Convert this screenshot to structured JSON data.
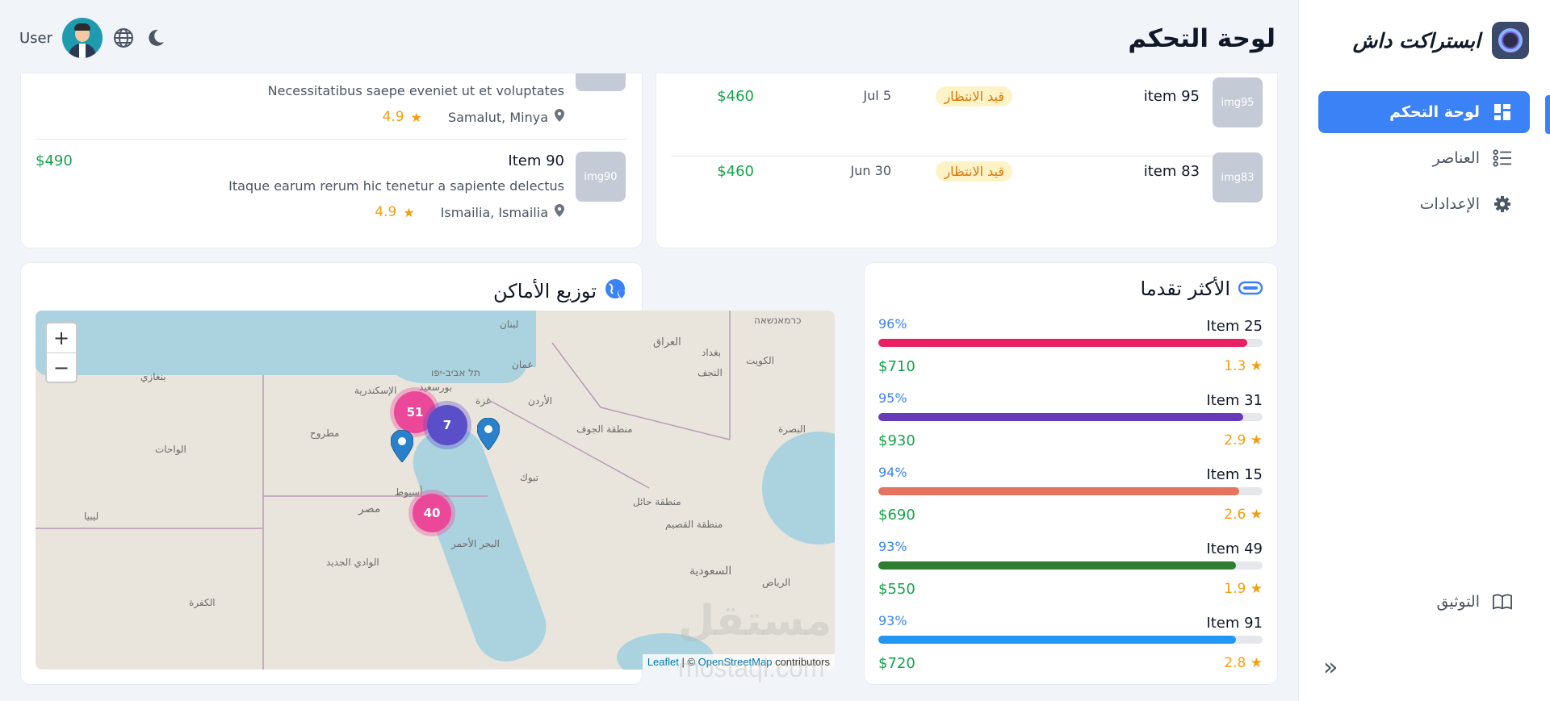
{
  "app": {
    "brand_name": "ابستراكت داش",
    "page_title": "لوحة التحكم"
  },
  "header": {
    "user_label": "User",
    "icons": [
      "globe-icon",
      "moon-icon"
    ]
  },
  "sidebar": {
    "items": [
      {
        "label": "لوحة التحكم",
        "icon": "dashboard-icon",
        "active": true
      },
      {
        "label": "العناصر",
        "icon": "list-icon",
        "active": false
      },
      {
        "label": "الإعدادات",
        "icon": "gear-icon",
        "active": false
      }
    ],
    "docs_label": "التوثيق",
    "collapse_icon": "chevrons-right-icon"
  },
  "reviews": {
    "partial": {
      "desc": "Necessitatibus saepe eveniet ut et voluptates",
      "location": "Samalut, Minya",
      "rating": "4.9"
    },
    "items": [
      {
        "thumb": "img90",
        "title": "Item 90",
        "desc": "Itaque earum rerum hic tenetur a sapiente delectus",
        "location": "Ismailia, Ismailia",
        "rating": "4.9",
        "price": "$490"
      }
    ]
  },
  "orders": {
    "items": [
      {
        "thumb": "img95",
        "name": "item 95",
        "status": "قيد الانتظار",
        "date": "Jul 5",
        "price": "$460"
      },
      {
        "thumb": "img83",
        "name": "item 83",
        "status": "قيد الانتظار",
        "date": "Jun 30",
        "price": "$460"
      }
    ]
  },
  "map_section": {
    "title": "توزيع الأماكن",
    "zoom_in": "+",
    "zoom_out": "−",
    "clusters": [
      "51",
      "7",
      "40"
    ],
    "attribution": {
      "leaflet": "Leaflet",
      "sep": " | © ",
      "osm": "OpenStreetMap",
      "suffix": " contributors"
    },
    "labels": [
      "بغداد",
      "العراق",
      "الكويت",
      "البصرة",
      "الرياض",
      "السعودية",
      "تبوك",
      "الأردن",
      "مصر",
      "أسيوط",
      "ليبيا",
      "بنغازي",
      "الإسكندرية",
      "بورسعيد",
      "الواحات",
      "مطروح",
      "منطقة الجوف",
      "منطقة حائل",
      "منطقة القصيم",
      "الوادي الجديد",
      "الكفرة",
      "البحر الأحمر",
      "عمان",
      "غزة",
      "النجف",
      "لبنان",
      "כרמאנשאה",
      "תל אביב-יפו"
    ]
  },
  "progress_section": {
    "title": "الأكثر تقدما",
    "items": [
      {
        "name": "Item 25",
        "percent": 96,
        "percent_label": "96%",
        "price": "$710",
        "rating": "1.3",
        "color": "#e91e63"
      },
      {
        "name": "Item 31",
        "percent": 95,
        "percent_label": "95%",
        "price": "$930",
        "rating": "2.9",
        "color": "#673ab7"
      },
      {
        "name": "Item 15",
        "percent": 94,
        "percent_label": "94%",
        "price": "$690",
        "rating": "2.6",
        "color": "#e57360"
      },
      {
        "name": "Item 49",
        "percent": 93,
        "percent_label": "93%",
        "price": "$550",
        "rating": "1.9",
        "color": "#2e7d32"
      },
      {
        "name": "Item 91",
        "percent": 93,
        "percent_label": "93%",
        "price": "$720",
        "rating": "2.8",
        "color": "#2196f3"
      }
    ]
  },
  "watermark": {
    "arabic": "مستقل",
    "latin": "mostaql.com"
  }
}
